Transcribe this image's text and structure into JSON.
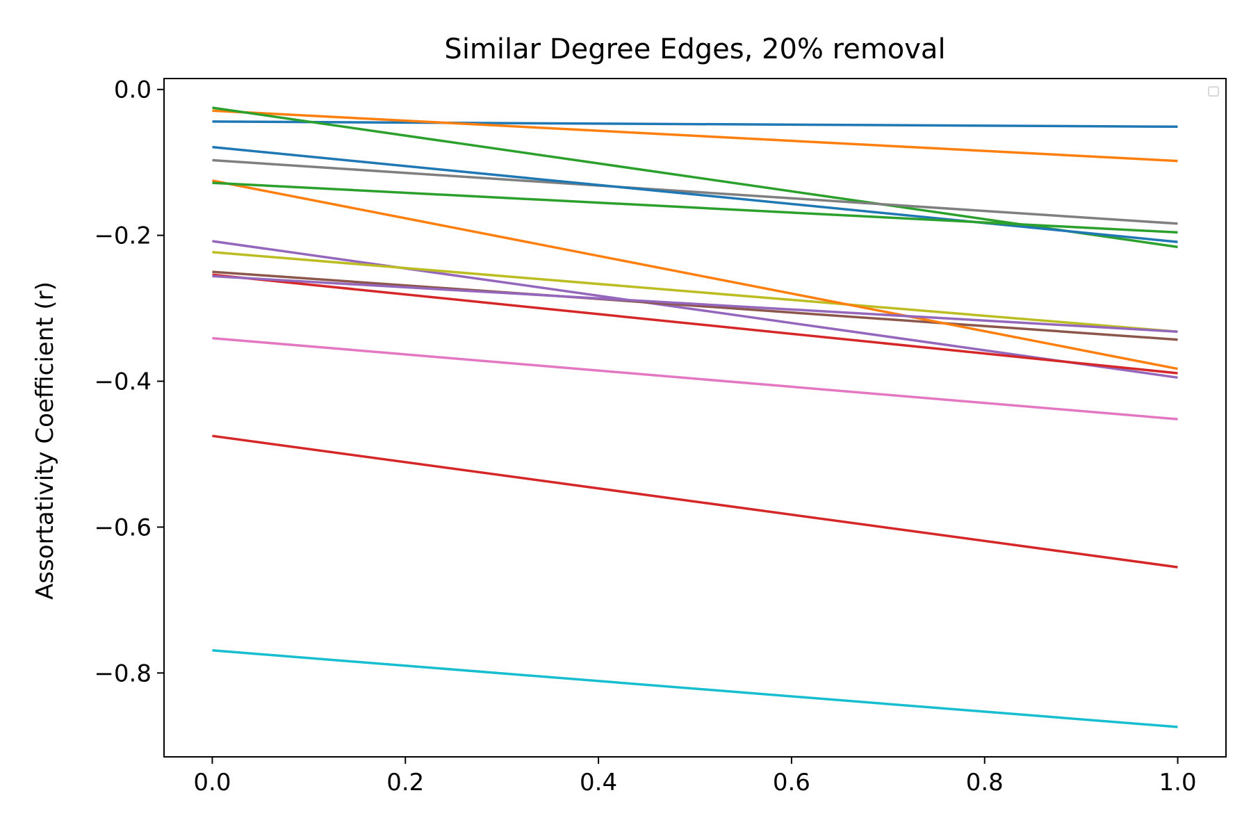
{
  "chart_data": {
    "type": "line",
    "title": "Similar Degree Edges, 20% removal",
    "xlabel": "",
    "ylabel": "Assortativity Coefficient (r)",
    "xlim": [
      -0.05,
      1.05
    ],
    "ylim": [
      -0.915,
      0.015
    ],
    "xticks": [
      "0.0",
      "0.2",
      "0.4",
      "0.6",
      "0.8",
      "1.0"
    ],
    "yticks": [
      "0.0",
      "−0.2",
      "−0.4",
      "−0.6",
      "−0.8"
    ],
    "xtick_values": [
      0.0,
      0.2,
      0.4,
      0.6,
      0.8,
      1.0
    ],
    "ytick_values": [
      0.0,
      -0.2,
      -0.4,
      -0.6,
      -0.8
    ],
    "grid": false,
    "legend": "top-right (empty)",
    "x": [
      0.0,
      1.0
    ],
    "series": [
      {
        "color": "#1f77b4",
        "values": [
          -0.044,
          -0.051
        ]
      },
      {
        "color": "#ff7f0e",
        "values": [
          -0.029,
          -0.098
        ]
      },
      {
        "color": "#2ca02c",
        "values": [
          -0.025,
          -0.216
        ]
      },
      {
        "color": "#d62728",
        "values": [
          -0.475,
          -0.655
        ]
      },
      {
        "color": "#9467bd",
        "values": [
          -0.208,
          -0.395
        ]
      },
      {
        "color": "#8c564b",
        "values": [
          -0.25,
          -0.343
        ]
      },
      {
        "color": "#e377c2",
        "values": [
          -0.341,
          -0.452
        ]
      },
      {
        "color": "#7f7f7f",
        "values": [
          -0.097,
          -0.184
        ]
      },
      {
        "color": "#bcbd22",
        "values": [
          -0.223,
          -0.332
        ]
      },
      {
        "color": "#17becf",
        "values": [
          -0.769,
          -0.874
        ]
      },
      {
        "color": "#1f77b4",
        "values": [
          -0.079,
          -0.209
        ]
      },
      {
        "color": "#ff7f0e",
        "values": [
          -0.125,
          -0.383
        ]
      },
      {
        "color": "#2ca02c",
        "values": [
          -0.128,
          -0.196
        ]
      },
      {
        "color": "#d62728",
        "values": [
          -0.254,
          -0.389
        ]
      },
      {
        "color": "#9467bd",
        "values": [
          -0.256,
          -0.332
        ]
      }
    ]
  }
}
